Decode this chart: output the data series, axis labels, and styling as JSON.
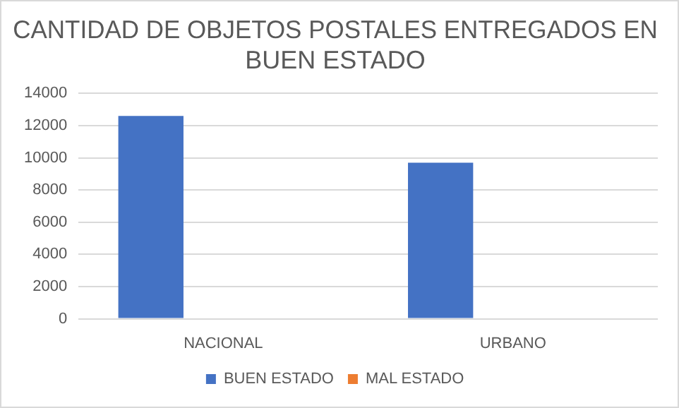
{
  "chart_data": {
    "type": "bar",
    "title": "CANTIDAD DE OBJETOS POSTALES ENTREGADOS EN BUEN ESTADO",
    "categories": [
      "NACIONAL",
      "URBANO"
    ],
    "series": [
      {
        "name": "BUEN ESTADO",
        "color": "#4472c4",
        "values": [
          12600,
          9700
        ]
      },
      {
        "name": "MAL ESTADO",
        "color": "#ed7d31",
        "values": [
          0,
          0
        ]
      }
    ],
    "ylim": [
      0,
      14000
    ],
    "yticks": [
      0,
      2000,
      4000,
      6000,
      8000,
      10000,
      12000,
      14000
    ],
    "grid": "y",
    "legend": "bottom"
  }
}
